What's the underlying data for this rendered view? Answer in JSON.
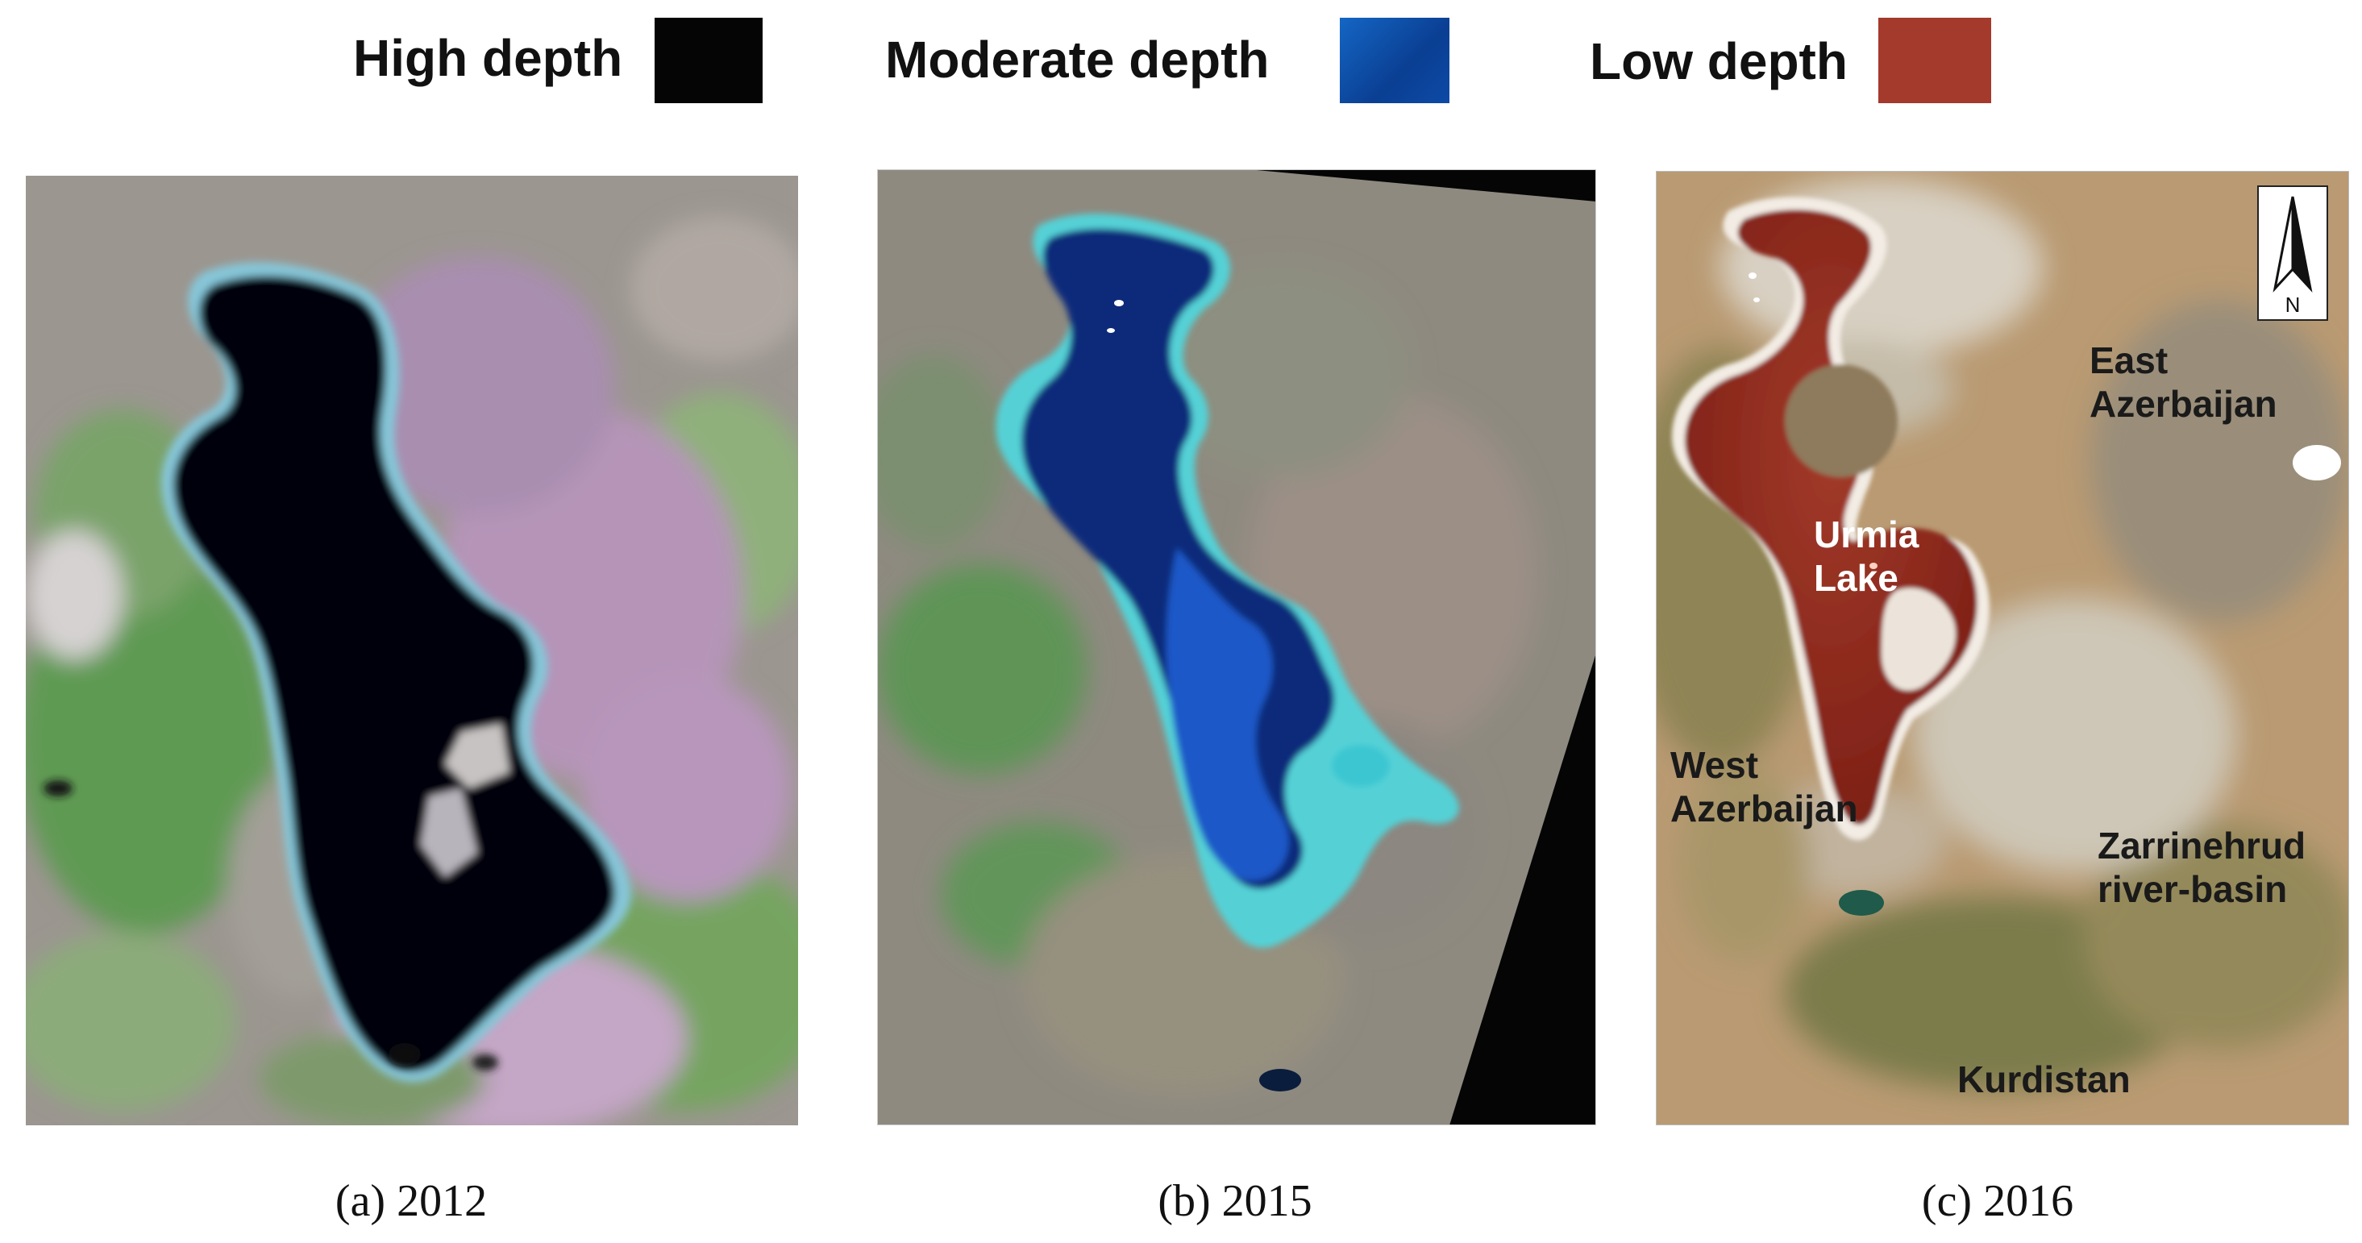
{
  "legend": [
    {
      "label": "High depth",
      "color": "#050505"
    },
    {
      "label": "Moderate depth",
      "color": "#0b4fa8"
    },
    {
      "label": "Low depth",
      "color": "#a33a2c"
    }
  ],
  "panels": [
    {
      "caption": "(a) 2012"
    },
    {
      "caption": "(b) 2015"
    },
    {
      "caption": "(c) 2016"
    }
  ],
  "map_c": {
    "north_label": "N",
    "labels": {
      "east_line1": "East",
      "east_line2": "Azerbaijan",
      "lake_line1": "Urmia",
      "lake_line2": "Lake",
      "west_line1": "West",
      "west_line2": "Azerbaijan",
      "zarr_line1": "Zarrinehrud",
      "zarr_line2": "river-basin",
      "kurdistan": "Kurdistan"
    }
  }
}
